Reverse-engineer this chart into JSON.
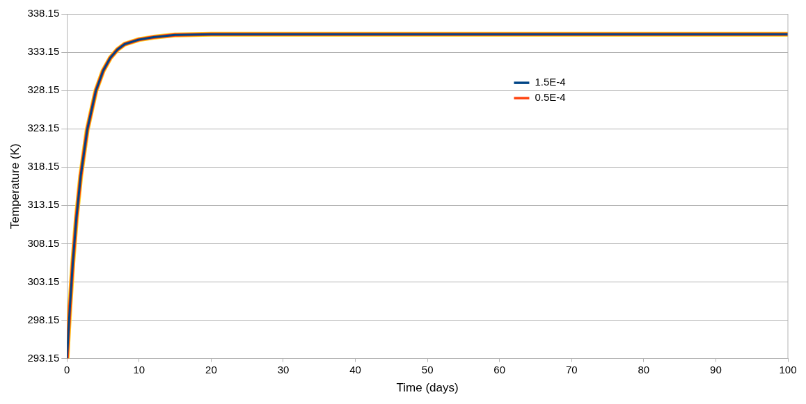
{
  "chart_data": {
    "type": "line",
    "xlabel": "Time (days)",
    "ylabel": "Temperature (K)",
    "x": [
      0,
      0.2,
      0.4,
      0.8,
      1.3,
      1.9,
      2.8,
      4,
      5,
      6,
      7,
      8,
      10,
      12,
      15,
      20,
      25,
      30,
      40,
      60,
      80,
      100
    ],
    "series": [
      {
        "name": "1.5E-4",
        "color": "#004586",
        "values": [
          293.15,
          296.7,
          299.9,
          305.6,
          311.5,
          317.0,
          323.0,
          328.1,
          330.7,
          332.4,
          333.5,
          334.2,
          334.8,
          335.1,
          335.4,
          335.5,
          335.5,
          335.5,
          335.5,
          335.5,
          335.5,
          335.5
        ]
      },
      {
        "name": "0.5E-4",
        "color": "#ff420e",
        "values": [
          293.15,
          296.7,
          299.9,
          305.6,
          311.5,
          317.0,
          323.0,
          328.1,
          330.7,
          332.4,
          333.5,
          334.2,
          334.8,
          335.1,
          335.4,
          335.5,
          335.5,
          335.5,
          335.5,
          335.5,
          335.5,
          335.5
        ]
      },
      {
        "color": "#ffd320",
        "values": [
          293.15,
          296.7,
          299.9,
          305.6,
          311.5,
          317.0,
          323.0,
          328.1,
          330.7,
          332.4,
          333.5,
          334.2,
          334.8,
          335.1,
          335.4,
          335.5,
          335.5,
          335.5,
          335.5,
          335.5,
          335.5,
          335.5
        ]
      }
    ],
    "xlim": [
      0,
      100
    ],
    "xticks": [
      0,
      10,
      20,
      30,
      40,
      50,
      60,
      70,
      80,
      90,
      100
    ],
    "ylim": [
      293.15,
      338.15
    ],
    "yticks": [
      293.15,
      298.15,
      303.15,
      308.15,
      313.15,
      318.15,
      323.15,
      328.15,
      333.15,
      338.15
    ],
    "grid": "y",
    "legend": "top right",
    "marker": "none",
    "line_style": "solid"
  }
}
